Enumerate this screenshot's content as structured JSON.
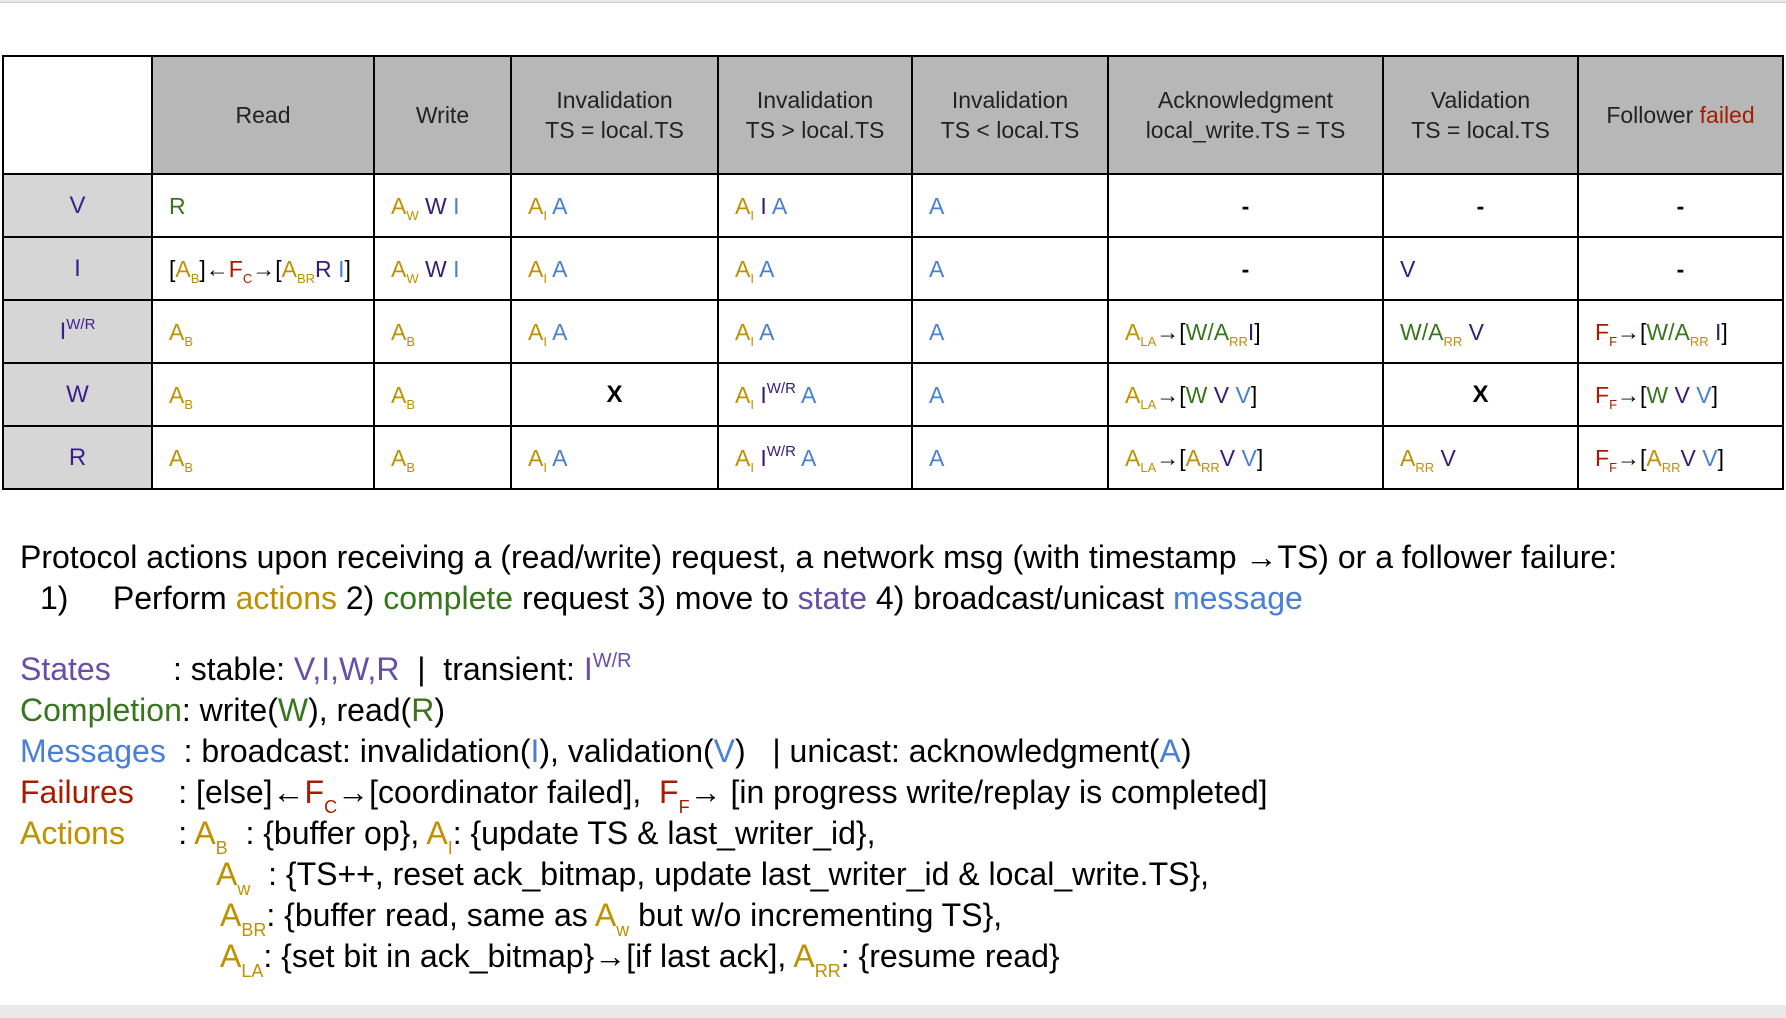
{
  "columns": [
    "",
    "Read",
    "Write",
    "Invalidation\nTS = local.TS",
    "Invalidation\nTS > local.TS",
    "Invalidation\nTS < local.TS",
    "Acknowledgment\nlocal_write.TS = TS",
    "Validation\nTS = local.TS",
    "Follower failed"
  ],
  "header_labels": {
    "read": "Read",
    "write": "Write",
    "inv_eq_1": "Invalidation",
    "inv_eq_2": "TS = local.TS",
    "inv_gt_1": "Invalidation",
    "inv_gt_2": "TS > local.TS",
    "inv_lt_1": "Invalidation",
    "inv_lt_2": "TS < local.TS",
    "ack_1": "Acknowledgment",
    "ack_2": "local_write.TS = TS",
    "val_1": "Validation",
    "val_2": "TS = local.TS",
    "ff_1": "Follower ",
    "ff_2": "failed"
  },
  "rows": [
    {
      "state": "V"
    },
    {
      "state": "I"
    },
    {
      "state": "I",
      "state_sup": "W/R"
    },
    {
      "state": "W"
    },
    {
      "state": "R"
    }
  ],
  "tokens": {
    "A": "A",
    "W": "W",
    "I": "I",
    "V": "V",
    "R": "R",
    "F": "F",
    "W_slash_A": "W/A",
    "sub_W": "W",
    "sub_I": "I",
    "sub_B": "B",
    "sub_C": "C",
    "sub_F": "F",
    "sub_BR": "BR",
    "sub_RR": "RR",
    "sub_LA": "LA",
    "sup_WR": "W/R",
    "dash": "-",
    "x": "X",
    "arrow": "→",
    "lbr": "[",
    "rbr": "]",
    "leftarrow": "←"
  },
  "notes": {
    "line1": "Protocol actions upon receiving a (read/write) request, a network msg (with timestamp →TS) or a follower failure:",
    "line2_num": "1)     Perform ",
    "line2_actions": "actions",
    "line2_mid1": " 2) ",
    "line2_complete": "complete",
    "line2_mid2": " request 3) move to ",
    "line2_state": "state",
    "line2_mid3": " 4) broadcast/unicast ",
    "line2_message": "message",
    "states_label": "States",
    "states_text1": "       : stable: ",
    "states_vals": "V,I,W,R",
    "states_text2": "  |  transient: ",
    "completion_label": "Completion",
    "completion_text1": ": write(",
    "completion_text2": "), read(",
    "completion_text3": ")",
    "messages_label": "Messages",
    "messages_text1": "  : broadcast: invalidation(",
    "messages_text2": "), validation(",
    "messages_text3": ")   | unicast: acknowledgment(",
    "messages_text4": ")",
    "failures_label": "Failures",
    "failures_text1": "     : [else]←",
    "failures_text2": "→[coordinator failed],  ",
    "failures_text3": "→ [in progress write/replay is completed]",
    "actions_label": "Actions",
    "actions_text1": "      : ",
    "act_b_desc": "  : {buffer op}, ",
    "act_i_desc": ": {update TS & last_writer_id},",
    "act_w_desc": "  : {TS++, reset ack_bitmap, update last_writer_id & local_write.TS},",
    "act_br_desc1": ": {buffer read, same as ",
    "act_br_desc2": " but w/o incrementing TS},",
    "act_la_desc1": ": {set bit in ack_bitmap}→[if last ack], ",
    "act_la_desc2": ": {resume read}"
  },
  "colors": {
    "actions": "#bf9000",
    "completion": "#38761d",
    "state": "#351c75",
    "message": "#4a7fd6",
    "failure": "#a61c00",
    "header_bg": "#b7b7b7",
    "row_header_bg": "#d6d6d6"
  }
}
